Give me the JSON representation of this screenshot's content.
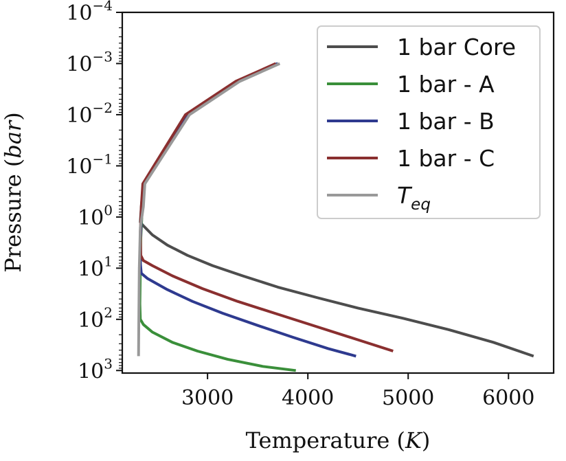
{
  "chart_data": {
    "type": "line",
    "xlabel": {
      "text": "Temperature (",
      "italic": "K",
      "suffix": ")"
    },
    "ylabel": {
      "text": "Pressure (",
      "italic": "bar",
      "suffix": ")"
    },
    "xlim": [
      2150,
      6450
    ],
    "ylim_log10": [
      -4,
      3.05
    ],
    "y_inverted": true,
    "y_scale": "log",
    "x_ticks": [
      3000,
      4000,
      5000,
      6000
    ],
    "x_tick_labels": [
      "3000",
      "4000",
      "5000",
      "6000"
    ],
    "y_ticks": [
      {
        "base": "10",
        "exp": "−4",
        "value": -4
      },
      {
        "base": "10",
        "exp": "−3",
        "value": -3
      },
      {
        "base": "10",
        "exp": "−2",
        "value": -2
      },
      {
        "base": "10",
        "exp": "−1",
        "value": -1
      },
      {
        "base": "10",
        "exp": "0",
        "value": 0
      },
      {
        "base": "10",
        "exp": "1",
        "value": 1
      },
      {
        "base": "10",
        "exp": "2",
        "value": 2
      },
      {
        "base": "10",
        "exp": "3",
        "value": 3
      }
    ],
    "legend_position": "top-right",
    "series": [
      {
        "name": "1 bar Core",
        "color": "#4d4d4d",
        "points": [
          [
            3700,
            -3
          ],
          [
            3300,
            -2.65
          ],
          [
            2800,
            -2
          ],
          [
            2360,
            -0.65
          ],
          [
            2340,
            -0.2
          ],
          [
            2330,
            0.1
          ],
          [
            2350,
            0.15
          ],
          [
            2450,
            0.35
          ],
          [
            2600,
            0.55
          ],
          [
            2800,
            0.75
          ],
          [
            3050,
            0.95
          ],
          [
            3350,
            1.15
          ],
          [
            3700,
            1.37
          ],
          [
            4100,
            1.58
          ],
          [
            4500,
            1.78
          ],
          [
            4950,
            1.98
          ],
          [
            5400,
            2.2
          ],
          [
            5850,
            2.45
          ],
          [
            6250,
            2.72
          ]
        ]
      },
      {
        "name": "1 bar - A",
        "color": "#3a8f3a",
        "points": [
          [
            3700,
            -3
          ],
          [
            3300,
            -2.65
          ],
          [
            2800,
            -2
          ],
          [
            2360,
            -0.65
          ],
          [
            2350,
            -0.2
          ],
          [
            2335,
            0.4
          ],
          [
            2330,
            1.0
          ],
          [
            2325,
            1.7
          ],
          [
            2330,
            2.0
          ],
          [
            2360,
            2.1
          ],
          [
            2450,
            2.25
          ],
          [
            2650,
            2.45
          ],
          [
            2900,
            2.62
          ],
          [
            3200,
            2.78
          ],
          [
            3550,
            2.92
          ],
          [
            3880,
            3.0
          ]
        ]
      },
      {
        "name": "1 bar - B",
        "color": "#2e3a8f",
        "points": [
          [
            3700,
            -3
          ],
          [
            3300,
            -2.65
          ],
          [
            2800,
            -2
          ],
          [
            2360,
            -0.65
          ],
          [
            2345,
            -0.2
          ],
          [
            2330,
            0.5
          ],
          [
            2330,
            0.9
          ],
          [
            2340,
            1.1
          ],
          [
            2400,
            1.2
          ],
          [
            2600,
            1.42
          ],
          [
            2850,
            1.65
          ],
          [
            3150,
            1.88
          ],
          [
            3500,
            2.12
          ],
          [
            3850,
            2.35
          ],
          [
            4200,
            2.57
          ],
          [
            4480,
            2.72
          ]
        ]
      },
      {
        "name": "1 bar - C",
        "color": "#8a2f2f",
        "points": [
          [
            3680,
            -3
          ],
          [
            3280,
            -2.65
          ],
          [
            2780,
            -2
          ],
          [
            2355,
            -0.65
          ],
          [
            2340,
            -0.2
          ],
          [
            2330,
            0.3
          ],
          [
            2335,
            0.75
          ],
          [
            2360,
            0.85
          ],
          [
            2450,
            0.95
          ],
          [
            2650,
            1.15
          ],
          [
            2950,
            1.4
          ],
          [
            3300,
            1.65
          ],
          [
            3700,
            1.9
          ],
          [
            4100,
            2.15
          ],
          [
            4500,
            2.4
          ],
          [
            4850,
            2.62
          ]
        ]
      },
      {
        "name": "T_eq",
        "label_base": "T",
        "label_sub": "eq",
        "color": "#999999",
        "points": [
          [
            3720,
            -3
          ],
          [
            3320,
            -2.65
          ],
          [
            2820,
            -2
          ],
          [
            2375,
            -0.65
          ],
          [
            2360,
            -0.2
          ],
          [
            2330,
            0.2
          ],
          [
            2320,
            1.0
          ],
          [
            2315,
            2.0
          ],
          [
            2312,
            2.72
          ]
        ]
      }
    ]
  }
}
